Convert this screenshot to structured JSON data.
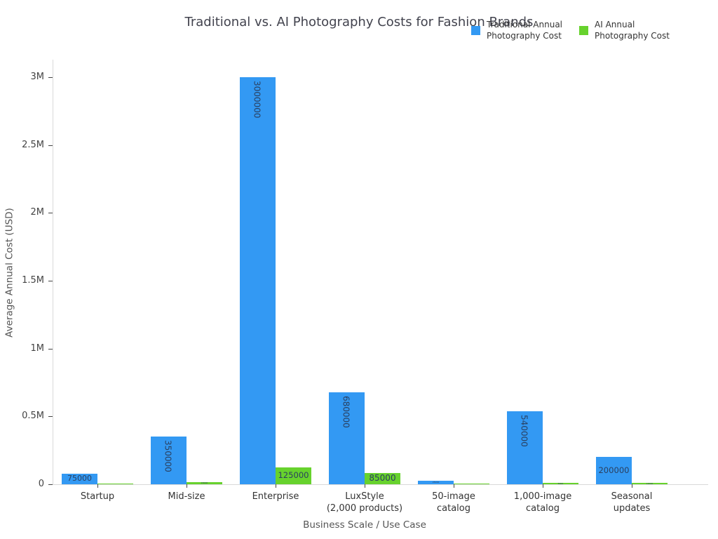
{
  "chart_data": {
    "type": "bar",
    "title": "Traditional vs. AI Photography Costs for Fashion Brands",
    "xlabel": "Business Scale / Use Case",
    "ylabel": "Average Annual Cost (USD)",
    "categories": [
      [
        "Startup"
      ],
      [
        "Mid-size"
      ],
      [
        "Enterprise"
      ],
      [
        "LuxStyle",
        "(2,000 products)"
      ],
      [
        "50-image",
        "catalog"
      ],
      [
        "1,000-image",
        "catalog"
      ],
      [
        "Seasonal",
        "updates"
      ]
    ],
    "series": [
      {
        "name": "Traditional Annual Photography Cost",
        "name_lines": [
          "Traditional Annual",
          "Photography Cost"
        ],
        "color": "#3399f3",
        "values": [
          75000,
          350000,
          3000000,
          680000,
          25000,
          540000,
          200000
        ]
      },
      {
        "name": "AI Annual Photography Cost",
        "name_lines": [
          "AI Annual",
          "Photography Cost"
        ],
        "color": "#67d22d",
        "values": [
          3000,
          15000,
          125000,
          85000,
          1000,
          8000,
          12000
        ]
      }
    ],
    "yticks": [
      {
        "v": 0,
        "label": "0"
      },
      {
        "v": 500000,
        "label": "0.5M"
      },
      {
        "v": 1000000,
        "label": "1M"
      },
      {
        "v": 1500000,
        "label": "1.5M"
      },
      {
        "v": 2000000,
        "label": "2M"
      },
      {
        "v": 2500000,
        "label": "2.5M"
      },
      {
        "v": 3000000,
        "label": "3M"
      }
    ],
    "ylim": [
      0,
      3000000
    ],
    "grid": false,
    "legend_position": "top-right",
    "bar_value_labels": true
  }
}
